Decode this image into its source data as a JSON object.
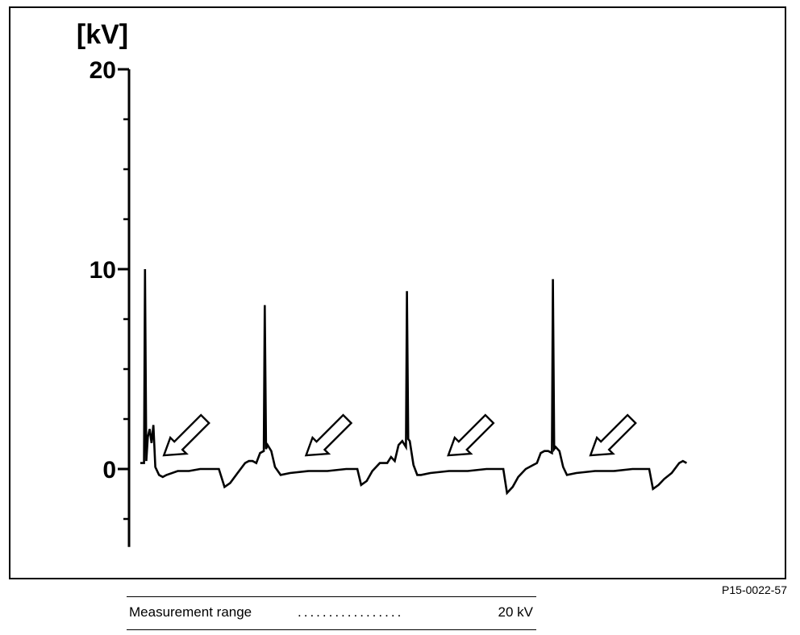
{
  "chart_data": {
    "type": "line",
    "title": "",
    "xlabel": "",
    "ylabel": "[kV]",
    "yticks": [
      "20",
      "10",
      "0"
    ],
    "ylim": [
      -4,
      20
    ],
    "grid": false,
    "annotations": "4 hollow arrows pointing at the burn-voltage region after each ignition spike",
    "series": [
      {
        "x": [
          0,
          2,
          2.5,
          3.2,
          4,
          5,
          6,
          7,
          8,
          10,
          12,
          14,
          20,
          26,
          32,
          36,
          40,
          42,
          45,
          48,
          52,
          56,
          58,
          60,
          62,
          64,
          66,
          66.5,
          67.2,
          68,
          70,
          72,
          75,
          80,
          90,
          100,
          110,
          116,
          118,
          121,
          124,
          128,
          132,
          134,
          136,
          138,
          140,
          142,
          142.5,
          143.2,
          144,
          146,
          148,
          150,
          155,
          165,
          175,
          185,
          194,
          196,
          199,
          202,
          206,
          210,
          212,
          214,
          216,
          218,
          220,
          220.5,
          221.2,
          222,
          224,
          226,
          228,
          233,
          243,
          253,
          263,
          272,
          274,
          277,
          280,
          284,
          288,
          290,
          292
        ],
        "y": [
          0.3,
          0.3,
          10.0,
          0.4,
          1.6,
          2.0,
          1.3,
          2.2,
          0.1,
          -0.3,
          -0.4,
          -0.3,
          -0.1,
          -0.1,
          0.0,
          0.0,
          0.0,
          0.0,
          -0.9,
          -0.7,
          -0.2,
          0.3,
          0.4,
          0.4,
          0.3,
          0.8,
          0.9,
          8.2,
          1.0,
          1.2,
          0.9,
          0.1,
          -0.3,
          -0.2,
          -0.1,
          -0.1,
          0.0,
          0.0,
          -0.8,
          -0.6,
          -0.1,
          0.3,
          0.3,
          0.6,
          0.4,
          1.2,
          1.4,
          1.1,
          8.9,
          1.5,
          1.4,
          0.2,
          -0.3,
          -0.3,
          -0.2,
          -0.1,
          -0.1,
          0.0,
          0.0,
          -1.2,
          -0.9,
          -0.4,
          0.0,
          0.2,
          0.3,
          0.8,
          0.9,
          0.9,
          0.8,
          9.5,
          1.0,
          1.1,
          0.9,
          0.1,
          -0.3,
          -0.2,
          -0.1,
          -0.1,
          0.0,
          0.0,
          -1.0,
          -0.8,
          -0.5,
          -0.2,
          0.3,
          0.4,
          0.3
        ]
      }
    ],
    "arrows": [
      {
        "x": 10,
        "y": 0.2
      },
      {
        "x": 86,
        "y": 0.2
      },
      {
        "x": 162,
        "y": 0.2
      },
      {
        "x": 238,
        "y": 0.2
      }
    ]
  },
  "figure_id": "P15-0022-57",
  "legend": {
    "label": "Measurement range",
    "value": "20 kV"
  }
}
